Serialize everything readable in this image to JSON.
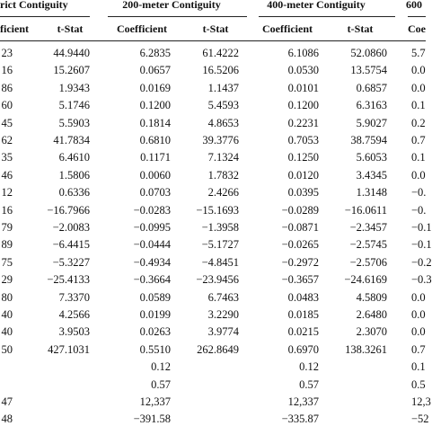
{
  "table": {
    "groups": [
      "rict Contiguity",
      "200-meter Contiguity",
      "400-meter Contiguity",
      "600"
    ],
    "subheaders": [
      "ficient",
      "t-Stat",
      "Coefficient",
      "t-Stat",
      "Coefficient",
      "t-Stat",
      "Coe"
    ],
    "rows": [
      [
        "23",
        "44.9440",
        "6.2835",
        "61.4222",
        "6.1086",
        "52.0860",
        "5.7"
      ],
      [
        "16",
        "15.2607",
        "0.0657",
        "16.5206",
        "0.0530",
        "13.5754",
        "0.0"
      ],
      [
        "86",
        "1.9343",
        "0.0169",
        "1.1437",
        "0.0101",
        "0.6857",
        "0.0"
      ],
      [
        "60",
        "5.1746",
        "0.1200",
        "5.4593",
        "0.1200",
        "6.3163",
        "0.1"
      ],
      [
        "45",
        "5.5903",
        "0.1814",
        "4.8653",
        "0.2231",
        "5.9027",
        "0.2"
      ],
      [
        "62",
        "41.7834",
        "0.6810",
        "39.3776",
        "0.7053",
        "38.7594",
        "0.7"
      ],
      [
        "35",
        "6.4610",
        "0.1171",
        "7.1324",
        "0.1250",
        "5.6053",
        "0.1"
      ],
      [
        "46",
        "1.5806",
        "0.0060",
        "1.7832",
        "0.0120",
        "3.4345",
        "0.0"
      ],
      [
        "12",
        "0.6336",
        "0.0703",
        "2.4266",
        "0.0395",
        "1.3148",
        "−0."
      ],
      [
        "16",
        "−16.7966",
        "−0.0283",
        "−15.1693",
        "−0.0289",
        "−16.0611",
        "−0."
      ],
      [
        "79",
        "−2.0083",
        "−0.0995",
        "−1.3958",
        "−0.0871",
        "−2.3457",
        "−0.1"
      ],
      [
        "89",
        "−6.4415",
        "−0.0444",
        "−5.1727",
        "−0.0265",
        "−2.5745",
        "−0.1"
      ],
      [
        "75",
        "−5.3227",
        "−0.4934",
        "−4.8451",
        "−0.2972",
        "−2.5706",
        "−0.2"
      ],
      [
        "29",
        "−25.4133",
        "−0.3664",
        "−23.9456",
        "−0.3657",
        "−24.6169",
        "−0.3"
      ],
      [
        "80",
        "7.3370",
        "0.0589",
        "6.7463",
        "0.0483",
        "4.5809",
        "0.0"
      ],
      [
        "40",
        "4.2566",
        "0.0199",
        "3.2290",
        "0.0185",
        "2.6480",
        "0.0"
      ],
      [
        "40",
        "3.9503",
        "0.0263",
        "3.9774",
        "0.0215",
        "2.3070",
        "0.0"
      ],
      [
        "50",
        "427.1031",
        "0.5510",
        "262.8649",
        "0.6970",
        "138.3261",
        "0.7"
      ],
      [
        null,
        null,
        "0.12",
        null,
        "0.12",
        null,
        "0.1"
      ],
      [
        null,
        null,
        "0.57",
        null,
        "0.57",
        null,
        "0.5"
      ],
      [
        "47",
        null,
        "12,337",
        null,
        "12,337",
        null,
        "12,3"
      ],
      [
        "48",
        null,
        "−391.58",
        null,
        "−335.87",
        null,
        "−52"
      ]
    ]
  }
}
